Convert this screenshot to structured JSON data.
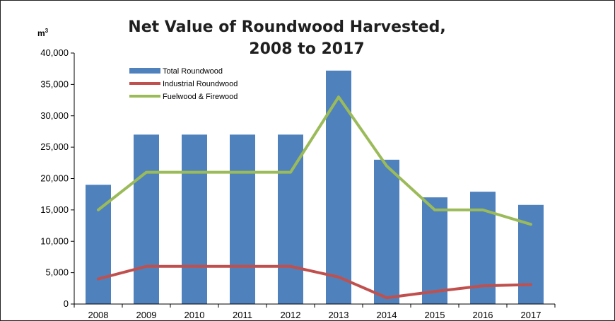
{
  "chart_data": {
    "type": "bar",
    "title_line1": "Net Value of Roundwood Harvested,",
    "title_line2": "2008 to 2017",
    "ylabel": "m",
    "ylabel_sup": "3",
    "categories": [
      "2008",
      "2009",
      "2010",
      "2011",
      "2012",
      "2013",
      "2014",
      "2015",
      "2016",
      "2017"
    ],
    "ylim": [
      0,
      40000
    ],
    "yticks": [
      0,
      5000,
      10000,
      15000,
      20000,
      25000,
      30000,
      35000,
      40000
    ],
    "ytick_labels": [
      "0",
      "5,000",
      "10,000",
      "15,000",
      "20,000",
      "25,000",
      "30,000",
      "35,000",
      "40,000"
    ],
    "grid": false,
    "legend_position": "top-left",
    "series": [
      {
        "name": "Total Roundwood",
        "type": "bar",
        "color": "#4f81bd",
        "values": [
          19000,
          27000,
          27000,
          27000,
          27000,
          37200,
          23000,
          17000,
          17900,
          15800
        ]
      },
      {
        "name": "Industrial Roundwood",
        "type": "line",
        "color": "#c0504d",
        "values": [
          4000,
          6000,
          6000,
          6000,
          6000,
          4300,
          1000,
          2000,
          2900,
          3100
        ]
      },
      {
        "name": "Fuelwood & Firewood",
        "type": "line",
        "color": "#9bbb59",
        "values": [
          15000,
          21000,
          21000,
          21000,
          21000,
          33000,
          22000,
          15000,
          15000,
          12700
        ]
      }
    ]
  }
}
